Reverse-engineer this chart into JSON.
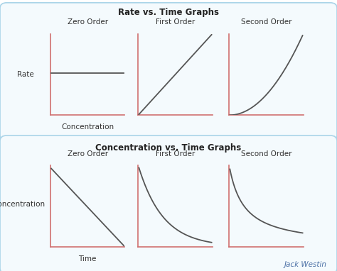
{
  "title_top": "Rate vs. Time Graphs",
  "title_bottom": "Concentration vs. Time Graphs",
  "orders": [
    "Zero Order",
    "First Order",
    "Second Order"
  ],
  "top_ylabel": "Rate",
  "top_xlabel": "Concentration",
  "bottom_ylabel": "Concentration",
  "bottom_xlabel": "Time",
  "box_edge_color": "#aad4e8",
  "box_face_color": "#f4fafd",
  "axis_color": "#d07070",
  "line_color": "#555555",
  "title_color": "#222222",
  "label_color": "#333333",
  "watermark_color": "#4a6fa5",
  "watermark": "Jack Westin"
}
